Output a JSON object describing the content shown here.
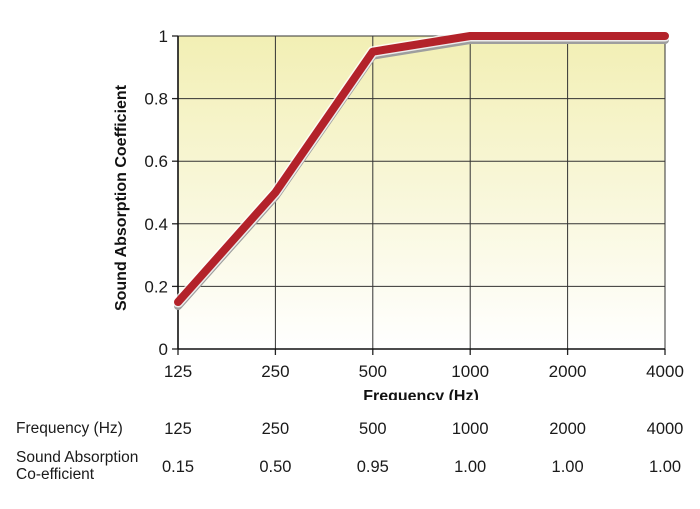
{
  "chart_data": {
    "type": "line",
    "x_categories": [
      "125",
      "250",
      "500",
      "1000",
      "2000",
      "4000"
    ],
    "series": [
      {
        "x": [
          125,
          250,
          500,
          1000,
          2000,
          4000
        ],
        "values": [
          0.15,
          0.5,
          0.95,
          1.0,
          1.0,
          1.0
        ]
      }
    ],
    "xlabel": "Frequency (Hz)",
    "ylabel": "Sound Absorption Coefficient",
    "ylim": [
      0,
      1
    ],
    "yticks": [
      "0",
      "0.2",
      "0.4",
      "0.6",
      "0.8",
      "1"
    ],
    "grid": true,
    "line_color": "#b3222a",
    "shadow_color": "#9e9e9e",
    "background_gradient": [
      "#f2efb4",
      "#ffffff"
    ]
  },
  "table": {
    "rows": [
      {
        "label": "Frequency (Hz)",
        "values": [
          "125",
          "250",
          "500",
          "1000",
          "2000",
          "4000"
        ]
      },
      {
        "label": "Sound Absorption Co-efficient",
        "label_lines": [
          "Sound Absorption",
          "Co-efficient"
        ],
        "values": [
          "0.15",
          "0.50",
          "0.95",
          "1.00",
          "1.00",
          "1.00"
        ]
      }
    ]
  }
}
